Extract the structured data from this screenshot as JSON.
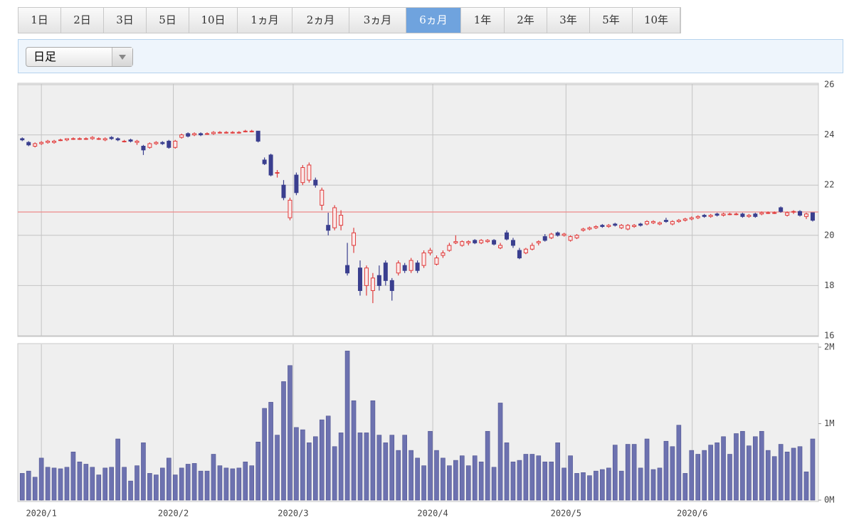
{
  "tabs": [
    "1日",
    "2日",
    "3日",
    "5日",
    "10日",
    "1ヵ月",
    "2ヵ月",
    "3ヵ月",
    "6ヵ月",
    "1年",
    "2年",
    "3年",
    "5年",
    "10年"
  ],
  "active_tab": 8,
  "dropdown": "日足",
  "chart_data": [
    {
      "type": "candlestick",
      "up_color": "#e03c3c",
      "down_color": "#3a3f8f",
      "grid": true,
      "reference_line": 20.93,
      "ylim": [
        16,
        26
      ],
      "yticks": [
        16,
        18,
        20,
        22,
        24,
        26
      ],
      "xlim": [
        -0.7,
        124.9
      ],
      "xticks": [
        {
          "value": 3.0,
          "label": "2020/1"
        },
        {
          "value": 23.7,
          "label": "2020/2"
        },
        {
          "value": 42.5,
          "label": "2020/3"
        },
        {
          "value": 64.4,
          "label": "2020/4"
        },
        {
          "value": 85.3,
          "label": "2020/5"
        },
        {
          "value": 105.1,
          "label": "2020/6"
        }
      ],
      "ohlc": [
        [
          23.85,
          23.9,
          23.75,
          23.8
        ],
        [
          23.7,
          23.75,
          23.55,
          23.6
        ],
        [
          23.55,
          23.7,
          23.5,
          23.65
        ],
        [
          23.65,
          23.75,
          23.6,
          23.7
        ],
        [
          23.7,
          23.8,
          23.65,
          23.75
        ],
        [
          23.7,
          23.8,
          23.65,
          23.75
        ],
        [
          23.8,
          23.85,
          23.75,
          23.8
        ],
        [
          23.8,
          23.85,
          23.75,
          23.85
        ],
        [
          23.85,
          23.9,
          23.8,
          23.85
        ],
        [
          23.85,
          23.9,
          23.8,
          23.85
        ],
        [
          23.85,
          23.9,
          23.8,
          23.85
        ],
        [
          23.85,
          23.95,
          23.8,
          23.9
        ],
        [
          23.85,
          23.9,
          23.8,
          23.85
        ],
        [
          23.8,
          23.9,
          23.75,
          23.85
        ],
        [
          23.9,
          23.95,
          23.8,
          23.85
        ],
        [
          23.85,
          23.9,
          23.75,
          23.8
        ],
        [
          23.75,
          23.8,
          23.7,
          23.75
        ],
        [
          23.8,
          23.85,
          23.7,
          23.75
        ],
        [
          23.7,
          23.8,
          23.6,
          23.75
        ],
        [
          23.55,
          23.6,
          23.2,
          23.4
        ],
        [
          23.5,
          23.7,
          23.45,
          23.65
        ],
        [
          23.65,
          23.75,
          23.6,
          23.7
        ],
        [
          23.7,
          23.75,
          23.6,
          23.65
        ],
        [
          23.75,
          23.8,
          23.45,
          23.5
        ],
        [
          23.5,
          23.8,
          23.45,
          23.75
        ],
        [
          23.9,
          24.05,
          23.85,
          24.0
        ],
        [
          24.05,
          24.1,
          23.9,
          23.95
        ],
        [
          24.0,
          24.1,
          23.95,
          24.05
        ],
        [
          24.05,
          24.1,
          23.95,
          24.0
        ],
        [
          24.05,
          24.1,
          24.0,
          24.05
        ],
        [
          24.05,
          24.15,
          24.0,
          24.1
        ],
        [
          24.1,
          24.15,
          24.05,
          24.1
        ],
        [
          24.1,
          24.15,
          24.05,
          24.1
        ],
        [
          24.1,
          24.15,
          24.05,
          24.1
        ],
        [
          24.1,
          24.15,
          24.05,
          24.1
        ],
        [
          24.15,
          24.2,
          24.1,
          24.15
        ],
        [
          24.15,
          24.2,
          24.1,
          24.15
        ],
        [
          24.15,
          24.15,
          23.7,
          23.75
        ],
        [
          23.0,
          23.1,
          22.8,
          22.85
        ],
        [
          23.2,
          23.25,
          22.35,
          22.4
        ],
        [
          22.5,
          22.6,
          22.3,
          22.5
        ],
        [
          22.0,
          22.2,
          21.4,
          21.5
        ],
        [
          20.7,
          21.5,
          20.6,
          21.4
        ],
        [
          22.4,
          22.5,
          21.6,
          21.7
        ],
        [
          22.1,
          22.8,
          22.0,
          22.7
        ],
        [
          22.2,
          22.9,
          22.1,
          22.8
        ],
        [
          22.2,
          22.3,
          21.9,
          22.0
        ],
        [
          21.2,
          21.9,
          21.0,
          21.8
        ],
        [
          20.4,
          20.9,
          20.0,
          20.2
        ],
        [
          20.3,
          21.2,
          20.2,
          21.1
        ],
        [
          20.4,
          21.0,
          20.2,
          20.8
        ],
        [
          18.8,
          19.7,
          18.4,
          18.5
        ],
        [
          19.6,
          20.3,
          19.3,
          20.1
        ],
        [
          18.7,
          19.0,
          17.6,
          17.8
        ],
        [
          18.0,
          18.8,
          17.6,
          18.7
        ],
        [
          17.8,
          18.5,
          17.3,
          18.3
        ],
        [
          18.4,
          18.8,
          17.8,
          18.0
        ],
        [
          18.9,
          19.0,
          18.0,
          18.2
        ],
        [
          18.2,
          18.3,
          17.4,
          17.8
        ],
        [
          18.5,
          19.0,
          18.4,
          18.9
        ],
        [
          18.8,
          18.9,
          18.5,
          18.6
        ],
        [
          18.6,
          19.1,
          18.5,
          19.0
        ],
        [
          18.9,
          19.0,
          18.5,
          18.6
        ],
        [
          18.8,
          19.4,
          18.7,
          19.3
        ],
        [
          19.3,
          19.5,
          19.2,
          19.4
        ],
        [
          18.85,
          19.2,
          18.8,
          19.1
        ],
        [
          19.2,
          19.4,
          19.1,
          19.3
        ],
        [
          19.4,
          19.7,
          19.35,
          19.6
        ],
        [
          19.7,
          20.0,
          19.65,
          19.75
        ],
        [
          19.6,
          19.8,
          19.55,
          19.75
        ],
        [
          19.7,
          19.8,
          19.6,
          19.75
        ],
        [
          19.8,
          19.85,
          19.65,
          19.7
        ],
        [
          19.7,
          19.85,
          19.65,
          19.8
        ],
        [
          19.75,
          19.85,
          19.7,
          19.8
        ],
        [
          19.8,
          19.85,
          19.6,
          19.65
        ],
        [
          19.5,
          19.7,
          19.45,
          19.6
        ],
        [
          20.1,
          20.2,
          19.8,
          19.85
        ],
        [
          19.8,
          19.9,
          19.5,
          19.6
        ],
        [
          19.4,
          19.5,
          19.05,
          19.1
        ],
        [
          19.3,
          19.5,
          19.25,
          19.45
        ],
        [
          19.45,
          19.7,
          19.4,
          19.6
        ],
        [
          19.7,
          19.8,
          19.6,
          19.75
        ],
        [
          19.95,
          20.05,
          19.75,
          19.8
        ],
        [
          19.9,
          20.1,
          19.85,
          20.05
        ],
        [
          20.1,
          20.15,
          19.95,
          20.0
        ],
        [
          20.0,
          20.1,
          19.95,
          20.05
        ],
        [
          19.8,
          20.0,
          19.75,
          19.95
        ],
        [
          19.9,
          20.05,
          19.85,
          20.0
        ],
        [
          20.2,
          20.3,
          20.15,
          20.25
        ],
        [
          20.25,
          20.35,
          20.2,
          20.3
        ],
        [
          20.3,
          20.4,
          20.25,
          20.35
        ],
        [
          20.4,
          20.45,
          20.3,
          20.35
        ],
        [
          20.35,
          20.45,
          20.3,
          20.4
        ],
        [
          20.45,
          20.5,
          20.35,
          20.4
        ],
        [
          20.3,
          20.45,
          20.25,
          20.4
        ],
        [
          20.25,
          20.45,
          20.2,
          20.4
        ],
        [
          20.35,
          20.45,
          20.3,
          20.4
        ],
        [
          20.45,
          20.5,
          20.35,
          20.4
        ],
        [
          20.45,
          20.6,
          20.4,
          20.55
        ],
        [
          20.5,
          20.6,
          20.45,
          20.55
        ],
        [
          20.45,
          20.55,
          20.4,
          20.5
        ],
        [
          20.6,
          20.7,
          20.5,
          20.55
        ],
        [
          20.45,
          20.6,
          20.4,
          20.55
        ],
        [
          20.55,
          20.65,
          20.5,
          20.6
        ],
        [
          20.6,
          20.7,
          20.55,
          20.65
        ],
        [
          20.65,
          20.75,
          20.6,
          20.7
        ],
        [
          20.7,
          20.8,
          20.65,
          20.75
        ],
        [
          20.8,
          20.85,
          20.7,
          20.75
        ],
        [
          20.75,
          20.85,
          20.7,
          20.8
        ],
        [
          20.85,
          20.9,
          20.75,
          20.8
        ],
        [
          20.8,
          20.9,
          20.75,
          20.85
        ],
        [
          20.85,
          20.9,
          20.8,
          20.85
        ],
        [
          20.85,
          20.9,
          20.8,
          20.85
        ],
        [
          20.85,
          20.9,
          20.7,
          20.75
        ],
        [
          20.75,
          20.85,
          20.7,
          20.8
        ],
        [
          20.85,
          20.9,
          20.7,
          20.75
        ],
        [
          20.85,
          20.95,
          20.8,
          20.9
        ],
        [
          20.9,
          20.95,
          20.85,
          20.9
        ],
        [
          20.9,
          20.95,
          20.85,
          20.9
        ],
        [
          21.1,
          21.15,
          20.9,
          20.95
        ],
        [
          20.8,
          20.95,
          20.75,
          20.9
        ],
        [
          20.95,
          21.0,
          20.85,
          20.95
        ],
        [
          20.95,
          21.0,
          20.75,
          20.8
        ],
        [
          20.75,
          20.9,
          20.65,
          20.85
        ],
        [
          20.9,
          20.9,
          20.55,
          20.6
        ]
      ]
    },
    {
      "type": "bar",
      "color": "#6d72b0",
      "ylim": [
        0,
        2
      ],
      "yticks": [
        {
          "value": 0,
          "label": "0M"
        },
        {
          "value": 1,
          "label": "1M"
        },
        {
          "value": 2,
          "label": "2M"
        }
      ],
      "values": [
        0.35,
        0.38,
        0.3,
        0.55,
        0.43,
        0.42,
        0.41,
        0.43,
        0.63,
        0.5,
        0.47,
        0.43,
        0.33,
        0.42,
        0.43,
        0.8,
        0.43,
        0.25,
        0.45,
        0.75,
        0.35,
        0.33,
        0.42,
        0.55,
        0.33,
        0.42,
        0.47,
        0.48,
        0.38,
        0.38,
        0.6,
        0.45,
        0.42,
        0.41,
        0.42,
        0.5,
        0.45,
        0.76,
        1.2,
        1.28,
        0.85,
        1.55,
        1.76,
        0.95,
        0.92,
        0.75,
        0.83,
        1.05,
        1.1,
        0.7,
        0.88,
        1.95,
        1.3,
        0.88,
        0.88,
        1.3,
        0.85,
        0.75,
        0.85,
        0.65,
        0.85,
        0.65,
        0.55,
        0.45,
        0.9,
        0.65,
        0.55,
        0.45,
        0.52,
        0.58,
        0.45,
        0.58,
        0.5,
        0.9,
        0.43,
        1.27,
        0.75,
        0.5,
        0.52,
        0.6,
        0.6,
        0.58,
        0.5,
        0.5,
        0.75,
        0.42,
        0.58,
        0.35,
        0.36,
        0.32,
        0.38,
        0.4,
        0.42,
        0.72,
        0.38,
        0.73,
        0.73,
        0.42,
        0.8,
        0.4,
        0.42,
        0.77,
        0.7,
        0.98,
        0.35,
        0.65,
        0.6,
        0.65,
        0.72,
        0.75,
        0.83,
        0.6,
        0.87,
        0.9,
        0.71,
        0.83,
        0.9,
        0.65,
        0.57,
        0.73,
        0.63,
        0.68,
        0.7,
        0.37,
        0.8
      ]
    }
  ]
}
